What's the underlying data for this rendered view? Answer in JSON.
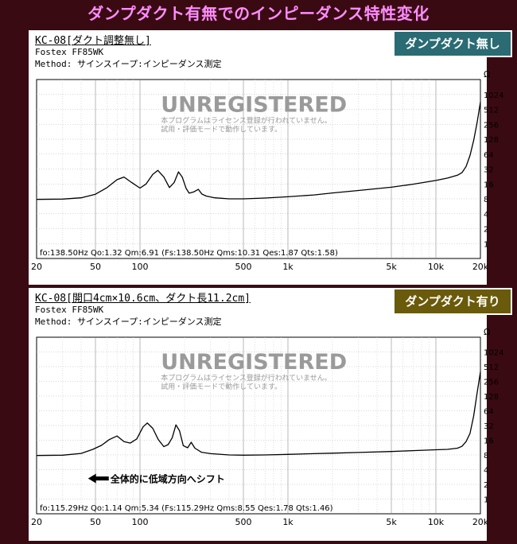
{
  "page_title": "ダンプダクト有無でのインピーダンス特性変化",
  "colors": {
    "background": "#3a0a12",
    "title": "#ff8cff",
    "badge1": "#2b6b73",
    "badge2": "#6a5a0c",
    "curve": "#000000",
    "grid": "#808080"
  },
  "watermark": {
    "title": "UNREGISTERED",
    "line1": "本プログラムはライセンス登録が行われていません。",
    "line2": "試用・評価モードで動作しています。"
  },
  "panels": [
    {
      "header_title": "KC-08[ダクト調整無し]",
      "driver": "Fostex FF85WK",
      "method": "Method: サインスイープ:インピーダンス測定",
      "badge": "ダンプダクト無し",
      "params": "fo:138.50Hz  Qo:1.32 Qm:6.91  (Fs:138.50Hz  Qms:10.31 Qes:1.87 Qts:1.58)",
      "annotation": ""
    },
    {
      "header_title": "KC-08[開口4cm×10.6cm、ダクト長11.2cm]",
      "driver": "Fostex FF85WK",
      "method": "Method: サインスイープ:インピーダンス測定",
      "badge": "ダンプダクト有り",
      "params": "fo:115.29Hz  Qo:1.14 Qm:5.34  (Fs:115.29Hz  Qms:8.55 Qes:1.78 Qts:1.46)",
      "annotation": "全体的に低域方向へシフト"
    }
  ],
  "chart_data": [
    {
      "type": "line",
      "x_scale": "log",
      "y_scale": "log",
      "xlim": [
        20,
        20000
      ],
      "ylim": [
        0.5,
        2048
      ],
      "y_unit": "Ω",
      "x_ticks": [
        20,
        50,
        100,
        500,
        1000,
        5000,
        10000,
        20000
      ],
      "x_tick_labels": [
        "20",
        "50",
        "100",
        "500",
        "1k",
        "5k",
        "10k",
        "20k"
      ],
      "y_ticks": [
        1,
        2,
        4,
        8,
        16,
        32,
        64,
        128,
        256,
        512,
        1024
      ],
      "y_tick_labels": [
        "1",
        "2",
        "4",
        "8",
        "16",
        "32",
        "64",
        "128",
        "256",
        "512",
        "1024"
      ],
      "grid": true,
      "series": [
        {
          "x": [
            20,
            30,
            40,
            50,
            60,
            70,
            78,
            88,
            100,
            110,
            122,
            132,
            145,
            158,
            170,
            182,
            193,
            205,
            215,
            230,
            248,
            262,
            280,
            320,
            400,
            500,
            700,
            1000,
            1500,
            2000,
            3000,
            5000,
            7000,
            10000,
            12000,
            14000,
            15000,
            16000,
            17000,
            18000,
            19000,
            20000
          ],
          "y": [
            7.8,
            7.9,
            8.4,
            9.9,
            13.5,
            19.5,
            22,
            17,
            13.2,
            16,
            25,
            30,
            22,
            13.5,
            17,
            28,
            22,
            13,
            10.4,
            11,
            12.4,
            10,
            9.1,
            8.4,
            8.0,
            8.0,
            8.3,
            8.8,
            9.6,
            10.5,
            11.8,
            13.7,
            15.8,
            18.8,
            21,
            24,
            27,
            36,
            60,
            120,
            280,
            720
          ]
        }
      ]
    },
    {
      "type": "line",
      "x_scale": "log",
      "y_scale": "log",
      "xlim": [
        20,
        20000
      ],
      "ylim": [
        0.5,
        2048
      ],
      "y_unit": "Ω",
      "x_ticks": [
        20,
        50,
        100,
        500,
        1000,
        5000,
        10000,
        20000
      ],
      "x_tick_labels": [
        "20",
        "50",
        "100",
        "500",
        "1k",
        "5k",
        "10k",
        "20k"
      ],
      "y_ticks": [
        1,
        2,
        4,
        8,
        16,
        32,
        64,
        128,
        256,
        512,
        1024
      ],
      "y_tick_labels": [
        "1",
        "2",
        "4",
        "8",
        "16",
        "32",
        "64",
        "128",
        "256",
        "512",
        "1024"
      ],
      "grid": true,
      "series": [
        {
          "x": [
            20,
            30,
            40,
            48,
            55,
            62,
            70,
            78,
            86,
            95,
            105,
            112,
            122,
            133,
            145,
            155,
            165,
            175,
            185,
            196,
            210,
            222,
            235,
            260,
            300,
            400,
            500,
            700,
            1000,
            1500,
            2000,
            3000,
            5000,
            7000,
            10000,
            12000,
            14000,
            15000,
            16000,
            17000,
            18000,
            19000,
            20000
          ],
          "y": [
            7.8,
            7.9,
            8.6,
            10.4,
            12.6,
            16.5,
            19.5,
            15,
            14,
            17,
            30,
            36,
            28,
            16.5,
            11.8,
            13,
            18,
            33,
            25,
            12.4,
            11.2,
            14.5,
            11,
            9.1,
            8.5,
            8.0,
            7.9,
            8.0,
            8.2,
            8.5,
            8.7,
            9.0,
            9.4,
            9.8,
            10.2,
            10.4,
            11,
            12,
            15,
            22,
            50,
            150,
            400
          ]
        }
      ]
    }
  ]
}
